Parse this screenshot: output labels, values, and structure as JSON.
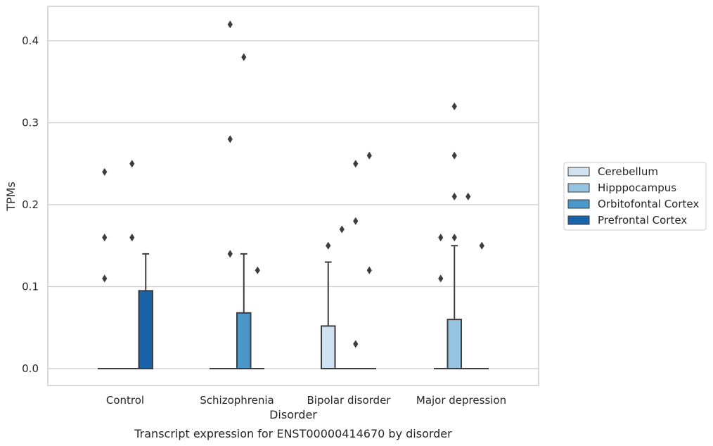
{
  "chart_data": {
    "type": "box",
    "xlabel": "Disorder",
    "ylabel": "TPMs",
    "caption": "Transcript expression for ENST00000414670 by disorder",
    "ylim": [
      -0.02,
      0.44
    ],
    "yticks": [
      0.0,
      0.1,
      0.2,
      0.3,
      0.4
    ],
    "ytick_labels": [
      "0.0",
      "0.1",
      "0.2",
      "0.3",
      "0.4"
    ],
    "grid": "horizontal",
    "legend_position": "right",
    "categories": [
      "Control",
      "Schizophrenia",
      "Bipolar disorder",
      "Major depression"
    ],
    "series": [
      {
        "name": "Cerebellum",
        "color": "#d0e1f2",
        "boxes": [
          {
            "q1": 0,
            "median": 0,
            "q3": 0,
            "whisker_low": 0,
            "whisker_high": 0,
            "outliers": [
              0.11,
              0.16,
              0.24
            ]
          },
          {
            "q1": 0,
            "median": 0,
            "q3": 0,
            "whisker_low": 0,
            "whisker_high": 0,
            "outliers": []
          },
          {
            "q1": 0,
            "median": 0,
            "q3": 0.052,
            "whisker_low": 0,
            "whisker_high": 0.13,
            "outliers": [
              0.15
            ]
          },
          {
            "q1": 0,
            "median": 0,
            "q3": 0,
            "whisker_low": 0,
            "whisker_high": 0,
            "outliers": [
              0.11,
              0.16
            ]
          }
        ]
      },
      {
        "name": "Hipppocampus",
        "color": "#94c4df",
        "boxes": [
          {
            "q1": 0,
            "median": 0,
            "q3": 0,
            "whisker_low": 0,
            "whisker_high": 0,
            "outliers": []
          },
          {
            "q1": 0,
            "median": 0,
            "q3": 0,
            "whisker_low": 0,
            "whisker_high": 0,
            "outliers": [
              0.14,
              0.28,
              0.42
            ]
          },
          {
            "q1": 0,
            "median": 0,
            "q3": 0,
            "whisker_low": 0,
            "whisker_high": 0,
            "outliers": [
              0.17
            ]
          },
          {
            "q1": 0,
            "median": 0,
            "q3": 0.06,
            "whisker_low": 0,
            "whisker_high": 0.15,
            "outliers": [
              0.16,
              0.21,
              0.26,
              0.32
            ]
          }
        ]
      },
      {
        "name": "Orbitofontal Cortex",
        "color": "#4a98c9",
        "boxes": [
          {
            "q1": 0,
            "median": 0,
            "q3": 0,
            "whisker_low": 0,
            "whisker_high": 0,
            "outliers": [
              0.16,
              0.25
            ]
          },
          {
            "q1": 0,
            "median": 0,
            "q3": 0.068,
            "whisker_low": 0,
            "whisker_high": 0.14,
            "outliers": [
              0.38
            ]
          },
          {
            "q1": 0,
            "median": 0,
            "q3": 0,
            "whisker_low": 0,
            "whisker_high": 0,
            "outliers": [
              0.03,
              0.18,
              0.25
            ]
          },
          {
            "q1": 0,
            "median": 0,
            "q3": 0,
            "whisker_low": 0,
            "whisker_high": 0,
            "outliers": [
              0.21
            ]
          }
        ]
      },
      {
        "name": "Prefrontal Cortex",
        "color": "#1764ab",
        "boxes": [
          {
            "q1": 0,
            "median": 0,
            "q3": 0.095,
            "whisker_low": 0,
            "whisker_high": 0.14,
            "outliers": []
          },
          {
            "q1": 0,
            "median": 0,
            "q3": 0,
            "whisker_low": 0,
            "whisker_high": 0,
            "outliers": [
              0.12
            ]
          },
          {
            "q1": 0,
            "median": 0,
            "q3": 0,
            "whisker_low": 0,
            "whisker_high": 0,
            "outliers": [
              0.12,
              0.26
            ]
          },
          {
            "q1": 0,
            "median": 0,
            "q3": 0,
            "whisker_low": 0,
            "whisker_high": 0,
            "outliers": [
              0.15
            ]
          }
        ]
      }
    ],
    "styles": {
      "line_color": "#3d3d3d",
      "grid_color": "#cccccc",
      "frame_color": "#cccccc"
    }
  }
}
